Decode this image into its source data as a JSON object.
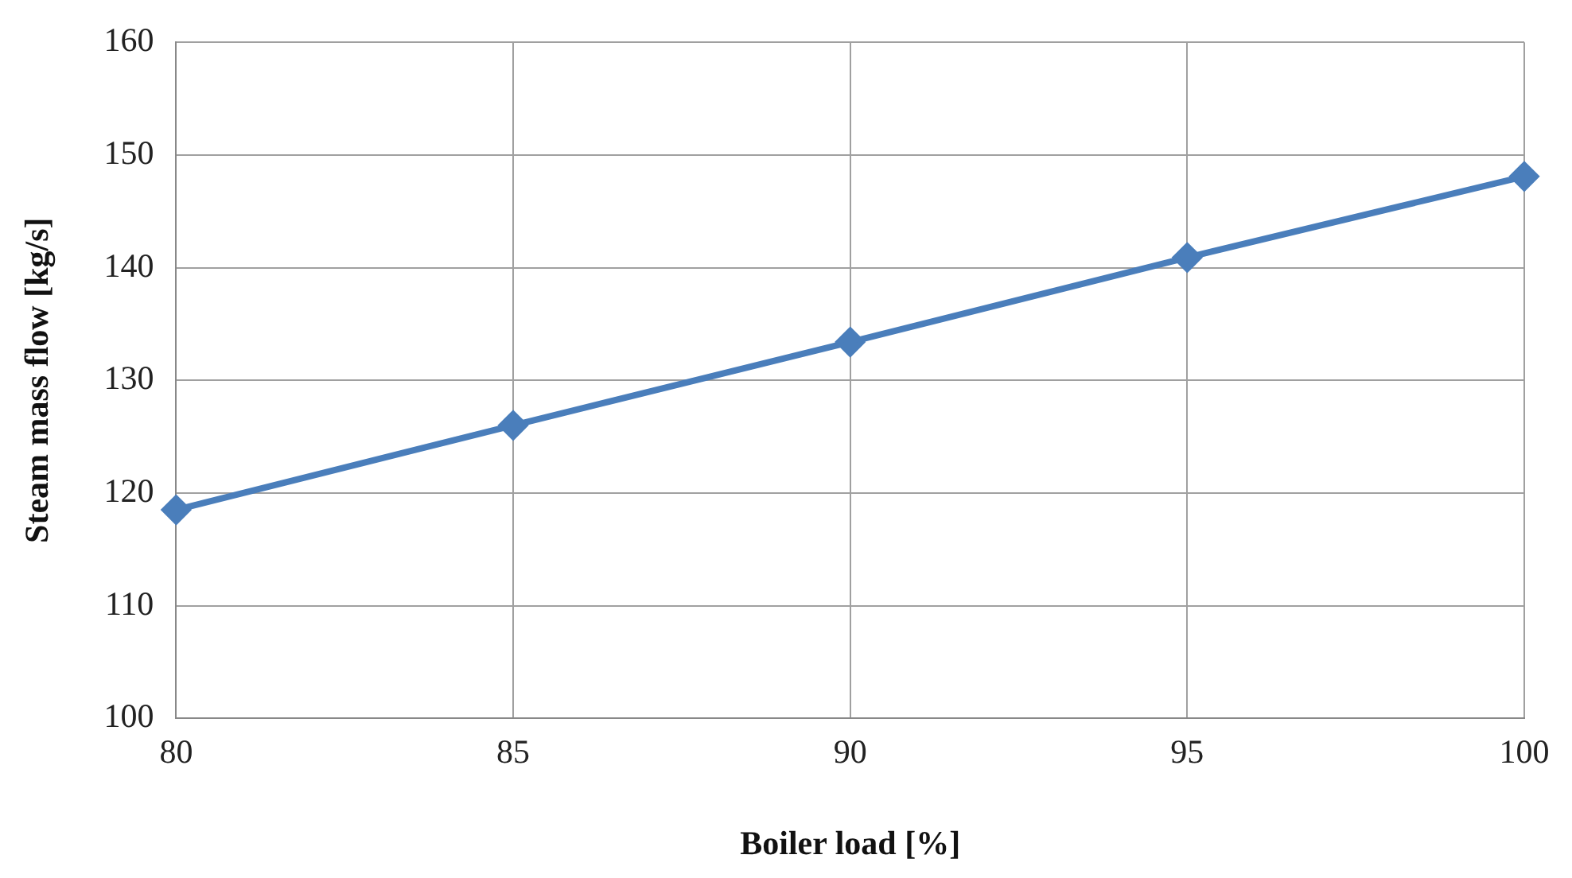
{
  "chart_data": {
    "type": "line",
    "xlabel": "Boiler load [%]",
    "ylabel": "Steam mass flow [kg/s]",
    "x": [
      80,
      85,
      90,
      95,
      100
    ],
    "series": [
      {
        "color": "#4a7ebb",
        "values": [
          118.5,
          126,
          133.4,
          140.9,
          148.1
        ]
      }
    ],
    "xlim": [
      80,
      100
    ],
    "xticks": [
      80,
      85,
      90,
      95,
      100
    ],
    "ylim": [
      100,
      160
    ],
    "yticks": [
      100,
      110,
      120,
      130,
      140,
      150,
      160
    ],
    "grid": true,
    "legend": false,
    "marker": "diamond",
    "line_style": "solid"
  }
}
